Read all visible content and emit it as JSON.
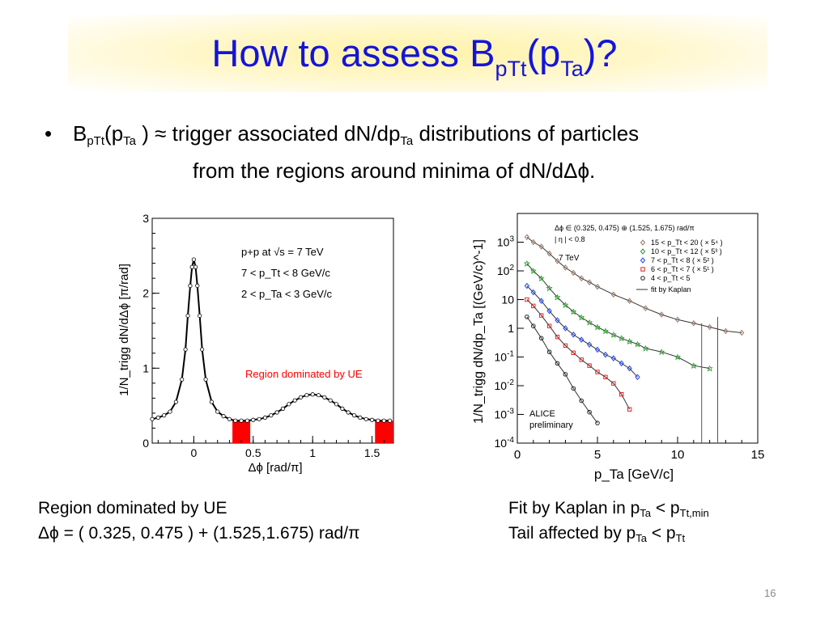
{
  "title": {
    "main": "How to assess B",
    "sub1": "pTt",
    "paren_open": "(p",
    "sub2": "Ta",
    "paren_close": ")?"
  },
  "bullet": {
    "marker": "•",
    "b": "B",
    "b_sub": "pTt",
    "p_open": "(p",
    "p_sub": "Ta",
    "middle": " ) ≈ trigger associated dN/dp",
    "mid_sub": "Ta",
    "end": " distributions of particles",
    "line2": "from the regions around minima of dN/dΔϕ."
  },
  "left_caption": {
    "line1": "Region dominated by UE",
    "line2": "Δϕ = ( 0.325, 0.475 ) + (1.525,1.675) rad/π"
  },
  "right_caption": {
    "l1_text": "Fit by Kaplan in p",
    "l1_sub1": "Ta",
    "l1_mid": " < p",
    "l1_sub2": "Tt,min",
    "l2_text": "Tail affected by p",
    "l2_sub1": "Ta",
    "l2_mid": " < p",
    "l2_sub2": "Tt"
  },
  "page_number": "16",
  "colors": {
    "title": "#1414d8",
    "title_band": "#fff3a8",
    "ue_region": "#ff0000"
  },
  "chart_data": [
    {
      "type": "line",
      "xlabel": "Δϕ [rad/π]",
      "ylabel": "1/N_trigg dN/dΔϕ [π/rad]",
      "xlim": [
        -0.35,
        1.68
      ],
      "ylim": [
        0,
        3
      ],
      "xticks": [
        "0",
        "0.5",
        "1",
        "1.5"
      ],
      "yticks": [
        "0",
        "1",
        "2",
        "3"
      ],
      "legend": [
        "p+p at √s = 7 TeV",
        "7 < p_Tt < 8 GeV/c",
        "2 < p_Ta < 3 GeV/c"
      ],
      "annotation": "Region dominated by UE",
      "shaded_regions": [
        [
          0.325,
          0.475
        ],
        [
          1.525,
          1.675
        ]
      ],
      "series": [
        {
          "x": [
            -0.35,
            -0.3,
            -0.25,
            -0.2,
            -0.15,
            -0.1,
            -0.07,
            -0.05,
            -0.03,
            -0.015,
            0,
            0.015,
            0.03,
            0.05,
            0.07,
            0.1,
            0.15,
            0.2,
            0.25,
            0.3,
            0.35,
            0.4,
            0.45,
            0.5,
            0.55,
            0.6,
            0.65,
            0.7,
            0.75,
            0.8,
            0.85,
            0.9,
            0.95,
            1.0,
            1.05,
            1.1,
            1.15,
            1.2,
            1.25,
            1.3,
            1.35,
            1.4,
            1.45,
            1.5,
            1.55,
            1.6,
            1.65
          ],
          "y": [
            0.32,
            0.34,
            0.37,
            0.42,
            0.55,
            0.85,
            1.25,
            1.7,
            2.1,
            2.35,
            2.45,
            2.35,
            2.1,
            1.7,
            1.25,
            0.85,
            0.55,
            0.42,
            0.36,
            0.32,
            0.3,
            0.3,
            0.3,
            0.31,
            0.32,
            0.34,
            0.37,
            0.41,
            0.46,
            0.52,
            0.57,
            0.61,
            0.64,
            0.65,
            0.64,
            0.61,
            0.57,
            0.52,
            0.46,
            0.41,
            0.37,
            0.34,
            0.32,
            0.31,
            0.3,
            0.3,
            0.3
          ]
        }
      ]
    },
    {
      "type": "scatter",
      "xlabel": "p_Ta [GeV/c]",
      "ylabel": "1/N_trigg dN/dp_Ta [(GeV/c)^-1]",
      "xlim": [
        0,
        15
      ],
      "ylim": [
        0.0001,
        10000
      ],
      "yscale": "log",
      "xticks": [
        "0",
        "5",
        "10",
        "15"
      ],
      "yticks": [
        "10^-4",
        "10^-3",
        "10^-2",
        "10^-1",
        "1",
        "10",
        "10^2",
        "10^3"
      ],
      "legend_header": [
        "Δϕ ∈ (0.325, 0.475) ⊕ (1.525, 1.675) rad/π",
        "| η | < 0.8"
      ],
      "energy_label": "7 TeV",
      "watermark": [
        "ALICE",
        "preliminary"
      ],
      "series": [
        {
          "name": "15 < p_Tt < 20 ( × 5⁴ )",
          "color": "#9a7a6a",
          "marker": "diamond",
          "x": [
            0.6,
            1,
            1.5,
            2,
            2.5,
            3,
            3.5,
            4,
            4.5,
            5,
            6,
            7,
            8,
            9,
            10,
            11,
            12,
            13,
            14
          ],
          "y": [
            1500,
            1000,
            700,
            400,
            220,
            130,
            85,
            55,
            40,
            28,
            15,
            9,
            5,
            3,
            2,
            1.5,
            1.1,
            0.8,
            0.7
          ]
        },
        {
          "name": "10 < p_Tt < 12 ( × 5³ )",
          "color": "#2a9a2a",
          "marker": "star",
          "x": [
            0.6,
            1,
            1.5,
            2,
            2.5,
            3,
            3.5,
            4,
            4.5,
            5,
            5.5,
            6,
            6.5,
            7,
            7.5,
            8,
            9,
            10,
            11,
            12
          ],
          "y": [
            180,
            100,
            55,
            25,
            12,
            6.5,
            3.8,
            2.4,
            1.6,
            1.1,
            0.8,
            0.6,
            0.45,
            0.35,
            0.28,
            0.2,
            0.15,
            0.1,
            0.05,
            0.04
          ]
        },
        {
          "name": "7 < p_Tt < 8 ( × 5² )",
          "color": "#2244ee",
          "marker": "diamond",
          "x": [
            0.6,
            1,
            1.5,
            2,
            2.5,
            3,
            3.5,
            4,
            4.5,
            5,
            5.5,
            6,
            6.5,
            7,
            7.5
          ],
          "y": [
            30,
            18,
            9,
            4,
            1.9,
            1,
            0.6,
            0.4,
            0.27,
            0.18,
            0.12,
            0.09,
            0.06,
            0.04,
            0.02
          ]
        },
        {
          "name": "6 < p_Tt < 7 ( × 5¹ )",
          "color": "#ee2222",
          "marker": "square",
          "x": [
            0.6,
            1,
            1.5,
            2,
            2.5,
            3,
            3.5,
            4,
            4.5,
            5,
            5.5,
            6,
            6.5,
            7
          ],
          "y": [
            10,
            6,
            2.8,
            1.2,
            0.5,
            0.25,
            0.14,
            0.08,
            0.05,
            0.03,
            0.02,
            0.012,
            0.005,
            0.0015
          ]
        },
        {
          "name": "4 < p_Tt < 5",
          "color": "#222222",
          "marker": "circle",
          "x": [
            0.6,
            1,
            1.5,
            2,
            2.5,
            3,
            3.5,
            4,
            4.5,
            5
          ],
          "y": [
            2.5,
            1.2,
            0.45,
            0.15,
            0.06,
            0.025,
            0.008,
            0.003,
            0.0012,
            0.0005
          ]
        }
      ],
      "fit_label": "fit by Kaplan"
    }
  ]
}
